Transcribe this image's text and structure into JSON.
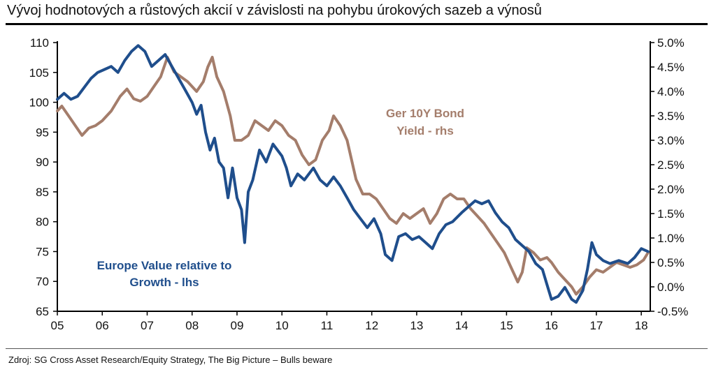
{
  "title": "Vývoj hodnotových a růstových akcií v závislosti na pohybu úrokových sazeb a výnosů",
  "source": "Zdroj: SG Cross Asset Research/Equity Strategy, The Big Picture – Bulls beware",
  "chart_data": {
    "type": "line",
    "x_ticks": [
      "05",
      "06",
      "07",
      "08",
      "09",
      "10",
      "11",
      "12",
      "13",
      "14",
      "15",
      "16",
      "17",
      "18"
    ],
    "x_range": [
      2005.0,
      2018.2
    ],
    "y_left": {
      "range": [
        65,
        110
      ],
      "ticks": [
        "110",
        "105",
        "100",
        "95",
        "90",
        "85",
        "80",
        "75",
        "70",
        "65"
      ]
    },
    "y_right": {
      "range": [
        -0.5,
        5.0
      ],
      "ticks": [
        "5.0%",
        "4.5%",
        "4.0%",
        "3.5%",
        "3.0%",
        "2.5%",
        "2.0%",
        "1.5%",
        "1.0%",
        "0.5%",
        "0.0%",
        "-0.5%"
      ]
    },
    "grid": false,
    "series": [
      {
        "name": "Europe Value relative to Growth - lhs",
        "label_lines": [
          "Europe Value relative to",
          "Growth - lhs"
        ],
        "axis": "left",
        "color": "#1f4e8c",
        "points": [
          [
            2005.0,
            100.5
          ],
          [
            2005.15,
            101.5
          ],
          [
            2005.3,
            100.5
          ],
          [
            2005.45,
            101.0
          ],
          [
            2005.6,
            102.5
          ],
          [
            2005.75,
            104.0
          ],
          [
            2005.9,
            105.0
          ],
          [
            2006.05,
            105.5
          ],
          [
            2006.2,
            106.0
          ],
          [
            2006.35,
            105.0
          ],
          [
            2006.5,
            107.0
          ],
          [
            2006.65,
            108.5
          ],
          [
            2006.8,
            109.5
          ],
          [
            2006.95,
            108.5
          ],
          [
            2007.1,
            106.0
          ],
          [
            2007.25,
            107.0
          ],
          [
            2007.4,
            108.0
          ],
          [
            2007.55,
            106.0
          ],
          [
            2007.7,
            104.0
          ],
          [
            2007.85,
            102.0
          ],
          [
            2008.0,
            100.0
          ],
          [
            2008.1,
            98.0
          ],
          [
            2008.2,
            99.5
          ],
          [
            2008.3,
            95.0
          ],
          [
            2008.4,
            92.0
          ],
          [
            2008.5,
            94.0
          ],
          [
            2008.6,
            90.0
          ],
          [
            2008.7,
            89.0
          ],
          [
            2008.8,
            84.0
          ],
          [
            2008.9,
            89.0
          ],
          [
            2009.0,
            84.0
          ],
          [
            2009.1,
            82.0
          ],
          [
            2009.17,
            76.5
          ],
          [
            2009.25,
            85.0
          ],
          [
            2009.35,
            87.0
          ],
          [
            2009.5,
            92.0
          ],
          [
            2009.65,
            90.0
          ],
          [
            2009.8,
            93.0
          ],
          [
            2009.9,
            92.0
          ],
          [
            2010.0,
            91.0
          ],
          [
            2010.1,
            89.0
          ],
          [
            2010.2,
            86.0
          ],
          [
            2010.35,
            88.0
          ],
          [
            2010.5,
            87.0
          ],
          [
            2010.7,
            89.0
          ],
          [
            2010.85,
            87.0
          ],
          [
            2011.0,
            86.0
          ],
          [
            2011.15,
            87.5
          ],
          [
            2011.3,
            86.0
          ],
          [
            2011.45,
            84.0
          ],
          [
            2011.6,
            82.0
          ],
          [
            2011.75,
            80.5
          ],
          [
            2011.9,
            79.0
          ],
          [
            2012.05,
            80.5
          ],
          [
            2012.2,
            78.0
          ],
          [
            2012.3,
            74.5
          ],
          [
            2012.45,
            73.5
          ],
          [
            2012.6,
            77.5
          ],
          [
            2012.75,
            78.0
          ],
          [
            2012.9,
            77.0
          ],
          [
            2013.05,
            77.5
          ],
          [
            2013.2,
            76.5
          ],
          [
            2013.35,
            75.5
          ],
          [
            2013.5,
            78.0
          ],
          [
            2013.65,
            79.5
          ],
          [
            2013.8,
            80.0
          ],
          [
            2014.0,
            81.5
          ],
          [
            2014.15,
            82.5
          ],
          [
            2014.3,
            83.5
          ],
          [
            2014.45,
            83.0
          ],
          [
            2014.6,
            83.5
          ],
          [
            2014.75,
            81.5
          ],
          [
            2014.9,
            80.0
          ],
          [
            2015.05,
            79.0
          ],
          [
            2015.2,
            77.0
          ],
          [
            2015.35,
            76.0
          ],
          [
            2015.5,
            75.0
          ],
          [
            2015.65,
            73.0
          ],
          [
            2015.8,
            72.0
          ],
          [
            2015.9,
            69.5
          ],
          [
            2016.0,
            67.0
          ],
          [
            2016.15,
            67.5
          ],
          [
            2016.3,
            69.0
          ],
          [
            2016.45,
            67.0
          ],
          [
            2016.55,
            66.5
          ],
          [
            2016.7,
            68.5
          ],
          [
            2016.8,
            72.0
          ],
          [
            2016.9,
            76.5
          ],
          [
            2017.0,
            74.5
          ],
          [
            2017.15,
            73.5
          ],
          [
            2017.3,
            73.0
          ],
          [
            2017.5,
            73.5
          ],
          [
            2017.7,
            73.0
          ],
          [
            2017.85,
            74.0
          ],
          [
            2018.0,
            75.5
          ],
          [
            2018.15,
            75.0
          ]
        ]
      },
      {
        "name": "Ger 10Y Bond Yield - rhs",
        "label_lines": [
          "Ger 10Y Bond",
          "Yield - rhs"
        ],
        "axis": "right",
        "color": "#a47d6b",
        "points": [
          [
            2005.0,
            3.6
          ],
          [
            2005.1,
            3.7
          ],
          [
            2005.25,
            3.5
          ],
          [
            2005.4,
            3.3
          ],
          [
            2005.55,
            3.1
          ],
          [
            2005.7,
            3.25
          ],
          [
            2005.85,
            3.3
          ],
          [
            2006.0,
            3.4
          ],
          [
            2006.2,
            3.6
          ],
          [
            2006.4,
            3.9
          ],
          [
            2006.55,
            4.05
          ],
          [
            2006.7,
            3.85
          ],
          [
            2006.85,
            3.8
          ],
          [
            2007.0,
            3.9
          ],
          [
            2007.15,
            4.1
          ],
          [
            2007.3,
            4.3
          ],
          [
            2007.45,
            4.7
          ],
          [
            2007.6,
            4.4
          ],
          [
            2007.75,
            4.3
          ],
          [
            2007.9,
            4.2
          ],
          [
            2008.1,
            4.0
          ],
          [
            2008.25,
            4.2
          ],
          [
            2008.35,
            4.5
          ],
          [
            2008.45,
            4.7
          ],
          [
            2008.55,
            4.3
          ],
          [
            2008.7,
            4.0
          ],
          [
            2008.85,
            3.5
          ],
          [
            2008.95,
            3.0
          ],
          [
            2009.1,
            3.0
          ],
          [
            2009.25,
            3.1
          ],
          [
            2009.4,
            3.4
          ],
          [
            2009.55,
            3.3
          ],
          [
            2009.7,
            3.2
          ],
          [
            2009.85,
            3.4
          ],
          [
            2010.0,
            3.3
          ],
          [
            2010.15,
            3.1
          ],
          [
            2010.3,
            3.0
          ],
          [
            2010.45,
            2.7
          ],
          [
            2010.6,
            2.5
          ],
          [
            2010.75,
            2.6
          ],
          [
            2010.9,
            3.0
          ],
          [
            2011.05,
            3.2
          ],
          [
            2011.15,
            3.5
          ],
          [
            2011.3,
            3.3
          ],
          [
            2011.45,
            3.0
          ],
          [
            2011.55,
            2.6
          ],
          [
            2011.65,
            2.2
          ],
          [
            2011.8,
            1.9
          ],
          [
            2011.95,
            1.9
          ],
          [
            2012.1,
            1.8
          ],
          [
            2012.25,
            1.6
          ],
          [
            2012.4,
            1.4
          ],
          [
            2012.55,
            1.3
          ],
          [
            2012.7,
            1.5
          ],
          [
            2012.85,
            1.4
          ],
          [
            2013.0,
            1.5
          ],
          [
            2013.15,
            1.6
          ],
          [
            2013.3,
            1.3
          ],
          [
            2013.45,
            1.5
          ],
          [
            2013.6,
            1.8
          ],
          [
            2013.75,
            1.9
          ],
          [
            2013.9,
            1.8
          ],
          [
            2014.05,
            1.8
          ],
          [
            2014.2,
            1.6
          ],
          [
            2014.35,
            1.45
          ],
          [
            2014.5,
            1.3
          ],
          [
            2014.65,
            1.1
          ],
          [
            2014.8,
            0.9
          ],
          [
            2014.95,
            0.7
          ],
          [
            2015.1,
            0.4
          ],
          [
            2015.25,
            0.1
          ],
          [
            2015.35,
            0.3
          ],
          [
            2015.45,
            0.8
          ],
          [
            2015.6,
            0.7
          ],
          [
            2015.75,
            0.55
          ],
          [
            2015.9,
            0.6
          ],
          [
            2016.0,
            0.5
          ],
          [
            2016.15,
            0.3
          ],
          [
            2016.3,
            0.15
          ],
          [
            2016.45,
            0.0
          ],
          [
            2016.55,
            -0.15
          ],
          [
            2016.7,
            0.0
          ],
          [
            2016.85,
            0.2
          ],
          [
            2017.0,
            0.35
          ],
          [
            2017.15,
            0.3
          ],
          [
            2017.3,
            0.4
          ],
          [
            2017.45,
            0.5
          ],
          [
            2017.6,
            0.45
          ],
          [
            2017.75,
            0.4
          ],
          [
            2017.9,
            0.45
          ],
          [
            2018.05,
            0.55
          ],
          [
            2018.15,
            0.7
          ]
        ]
      }
    ]
  }
}
